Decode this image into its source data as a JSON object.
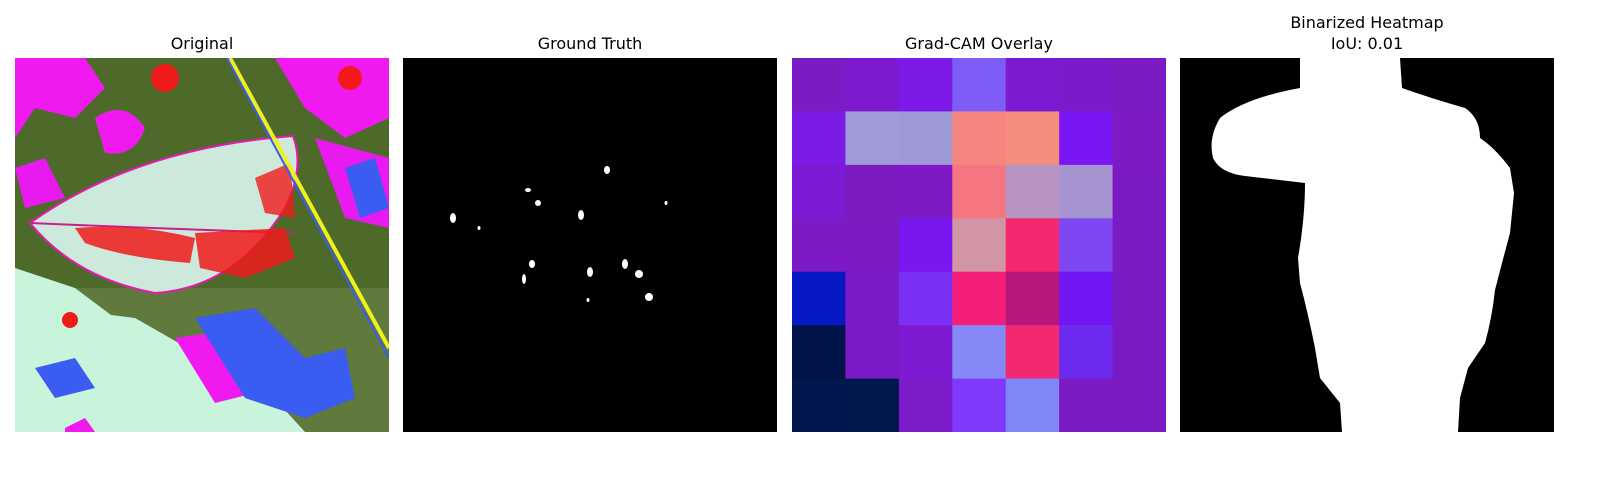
{
  "panels": [
    {
      "title": "Original"
    },
    {
      "title": "Ground Truth"
    },
    {
      "title": "Grad-CAM Overlay"
    },
    {
      "title": "Binarized Heatmap",
      "subtitle": "IoU: 0.01"
    }
  ],
  "gradcam_grid": [
    [
      "#7a1cc4",
      "#7d1ad0",
      "#7b1ae6",
      "#7d5cf8",
      "#7c1ad1",
      "#7b1acb",
      "#7c1ac4"
    ],
    [
      "#7c1ae6",
      "#9f9ad8",
      "#9f98d6",
      "#f7857f",
      "#f58c7c",
      "#7a16f2",
      "#7d1ac4"
    ],
    [
      "#7d1ad6",
      "#7d1ac0",
      "#7d1ac6",
      "#f57680",
      "#b795c0",
      "#a594d1",
      "#7c1ac5"
    ],
    [
      "#7d1ac6",
      "#7d1ac4",
      "#7a16f0",
      "#d195a6",
      "#f22870",
      "#7d48f1",
      "#7c1ac4"
    ],
    [
      "#0518c4",
      "#7d1ac8",
      "#7b30f4",
      "#f51f79",
      "#b9167d",
      "#7016f2",
      "#7a1ac4"
    ],
    [
      "#001449",
      "#7d1ac8",
      "#7d1ad2",
      "#8588f5",
      "#f22870",
      "#6d2aef",
      "#7a1ac4"
    ],
    [
      "#00164c",
      "#00184c",
      "#7d1ac9",
      "#7e39fb",
      "#7f86f6",
      "#7c1ac3",
      "#7c1ac4"
    ]
  ]
}
